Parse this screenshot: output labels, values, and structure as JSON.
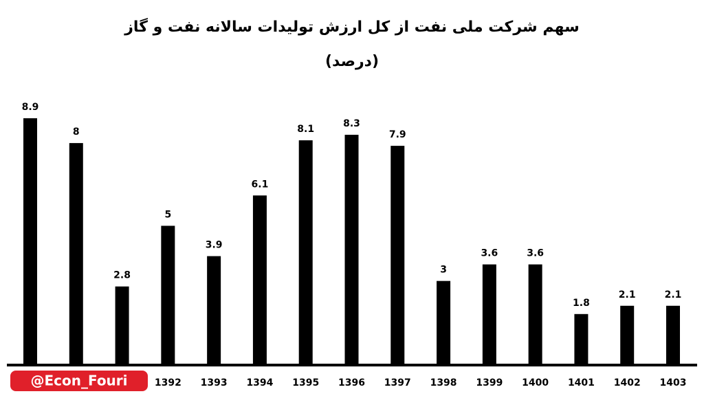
{
  "chart_data": {
    "type": "bar",
    "title": "سهم شرکت ملی نفت از کل ارزش تولیدات سالانه نفت و گاز",
    "subtitle": "(درصد)",
    "categories": [
      null,
      null,
      null,
      "1392",
      "1393",
      "1394",
      "1395",
      "1396",
      "1397",
      "1398",
      "1399",
      "1400",
      "1401",
      "1402",
      "1403"
    ],
    "values": [
      8.9,
      8,
      2.8,
      5,
      3.9,
      6.1,
      8.1,
      8.3,
      7.9,
      3,
      3.6,
      3.6,
      1.8,
      2.1,
      2.1
    ],
    "color": "#000000",
    "badge": "@Econ_Fouri"
  }
}
